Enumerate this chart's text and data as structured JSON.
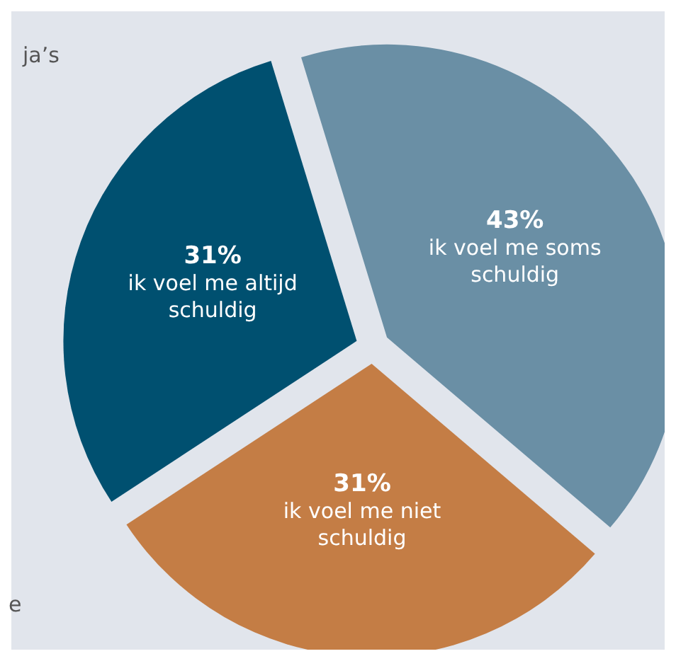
{
  "chart_data": {
    "type": "pie",
    "categories": [
      "ik voel me soms schuldig",
      "ik voel me niet schuldig",
      "ik voel me altijd schuldig"
    ],
    "values": [
      43,
      31,
      31
    ],
    "colors": [
      "#6a8fa5",
      "#c47d45",
      "#005070"
    ],
    "value_labels": [
      "43%",
      "31%",
      "31%"
    ],
    "annotations": [
      "ja’s",
      "e"
    ],
    "legend": false
  }
}
